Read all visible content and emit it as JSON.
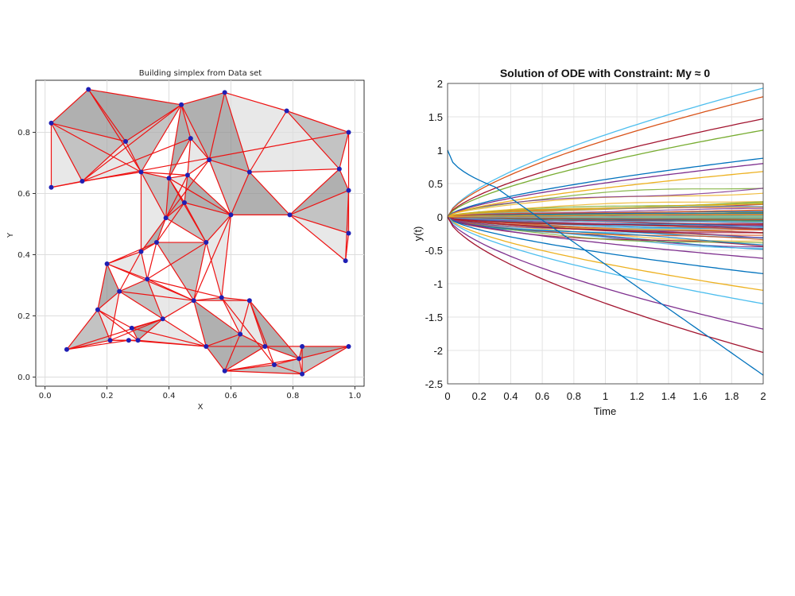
{
  "chart_data": [
    {
      "type": "scatter",
      "title": "Building simplex from Data set",
      "xlabel": "X",
      "ylabel": "Y",
      "xlim": [
        -0.03,
        1.03
      ],
      "ylim": [
        -0.03,
        0.97
      ],
      "xticks": [
        "0.0",
        "0.2",
        "0.4",
        "0.6",
        "0.8",
        "1.0"
      ],
      "yticks": [
        "0.0",
        "0.2",
        "0.4",
        "0.6",
        "0.8"
      ],
      "grid": true,
      "point_color": "#1f1fb4",
      "edge_color": "#ee1111",
      "face_colors": [
        "#8f8f8f",
        "#a9a9a9",
        "#dedede"
      ],
      "points": [
        [
          0.02,
          0.83
        ],
        [
          0.14,
          0.94
        ],
        [
          0.02,
          0.62
        ],
        [
          0.12,
          0.64
        ],
        [
          0.26,
          0.77
        ],
        [
          0.31,
          0.67
        ],
        [
          0.44,
          0.89
        ],
        [
          0.58,
          0.93
        ],
        [
          0.78,
          0.87
        ],
        [
          0.98,
          0.8
        ],
        [
          0.95,
          0.68
        ],
        [
          0.98,
          0.61
        ],
        [
          0.98,
          0.47
        ],
        [
          0.97,
          0.38
        ],
        [
          0.79,
          0.53
        ],
        [
          0.66,
          0.67
        ],
        [
          0.53,
          0.71
        ],
        [
          0.47,
          0.78
        ],
        [
          0.45,
          0.57
        ],
        [
          0.6,
          0.53
        ],
        [
          0.46,
          0.66
        ],
        [
          0.4,
          0.65
        ],
        [
          0.39,
          0.52
        ],
        [
          0.36,
          0.44
        ],
        [
          0.52,
          0.44
        ],
        [
          0.31,
          0.41
        ],
        [
          0.2,
          0.37
        ],
        [
          0.33,
          0.32
        ],
        [
          0.24,
          0.28
        ],
        [
          0.48,
          0.25
        ],
        [
          0.57,
          0.26
        ],
        [
          0.66,
          0.25
        ],
        [
          0.17,
          0.22
        ],
        [
          0.38,
          0.19
        ],
        [
          0.28,
          0.16
        ],
        [
          0.3,
          0.12
        ],
        [
          0.21,
          0.12
        ],
        [
          0.07,
          0.09
        ],
        [
          0.27,
          0.12
        ],
        [
          0.52,
          0.1
        ],
        [
          0.63,
          0.14
        ],
        [
          0.58,
          0.02
        ],
        [
          0.71,
          0.1
        ],
        [
          0.74,
          0.04
        ],
        [
          0.82,
          0.06
        ],
        [
          0.83,
          0.1
        ],
        [
          0.83,
          0.01
        ],
        [
          0.98,
          0.1
        ]
      ],
      "triangles": [
        [
          0,
          1,
          4
        ],
        [
          0,
          4,
          3
        ],
        [
          0,
          3,
          2
        ],
        [
          1,
          4,
          6
        ],
        [
          1,
          6,
          5
        ],
        [
          4,
          5,
          3
        ],
        [
          6,
          7,
          16
        ],
        [
          6,
          17,
          16
        ],
        [
          7,
          8,
          15
        ],
        [
          7,
          15,
          16
        ],
        [
          8,
          9,
          10
        ],
        [
          8,
          10,
          15
        ],
        [
          10,
          11,
          14
        ],
        [
          11,
          12,
          14
        ],
        [
          12,
          13,
          14
        ],
        [
          14,
          15,
          19
        ],
        [
          15,
          16,
          19
        ],
        [
          16,
          17,
          20
        ],
        [
          17,
          6,
          21
        ],
        [
          5,
          21,
          22
        ],
        [
          5,
          22,
          25
        ],
        [
          20,
          18,
          19
        ],
        [
          18,
          22,
          24
        ],
        [
          19,
          24,
          30
        ],
        [
          22,
          23,
          25
        ],
        [
          23,
          24,
          29
        ],
        [
          25,
          26,
          27
        ],
        [
          26,
          28,
          32
        ],
        [
          27,
          28,
          33
        ],
        [
          28,
          32,
          36
        ],
        [
          33,
          34,
          35
        ],
        [
          29,
          30,
          31
        ],
        [
          30,
          31,
          40
        ],
        [
          29,
          39,
          40
        ],
        [
          32,
          37,
          36
        ],
        [
          35,
          39,
          33
        ],
        [
          40,
          41,
          42
        ],
        [
          41,
          43,
          46
        ],
        [
          42,
          44,
          45
        ],
        [
          44,
          45,
          47
        ],
        [
          45,
          46,
          47
        ],
        [
          40,
          42,
          31
        ],
        [
          39,
          41,
          40
        ],
        [
          36,
          38,
          35
        ],
        [
          18,
          21,
          20
        ],
        [
          22,
          18,
          21
        ],
        [
          24,
          19,
          18
        ],
        [
          27,
          29,
          33
        ],
        [
          31,
          42,
          44
        ],
        [
          43,
          44,
          46
        ]
      ],
      "extra_edges": [
        [
          2,
          9
        ],
        [
          12,
          13
        ],
        [
          9,
          11
        ],
        [
          11,
          13
        ],
        [
          0,
          5
        ],
        [
          3,
          6
        ],
        [
          3,
          17
        ],
        [
          5,
          20
        ],
        [
          21,
          24
        ],
        [
          20,
          22
        ],
        [
          23,
          27
        ],
        [
          25,
          28
        ],
        [
          26,
          29
        ],
        [
          27,
          30
        ],
        [
          28,
          29
        ],
        [
          32,
          34
        ],
        [
          33,
          37
        ],
        [
          34,
          39
        ],
        [
          29,
          40
        ],
        [
          36,
          33
        ],
        [
          38,
          39
        ],
        [
          39,
          42
        ],
        [
          30,
          43
        ],
        [
          31,
          43
        ],
        [
          24,
          27
        ],
        [
          16,
          22
        ],
        [
          21,
          19
        ],
        [
          19,
          29
        ],
        [
          23,
          18
        ],
        [
          26,
          23
        ],
        [
          35,
          32
        ],
        [
          37,
          38
        ],
        [
          41,
          44
        ],
        [
          42,
          47
        ]
      ]
    },
    {
      "type": "line",
      "title": "Solution of ODE with Constraint: My ≈ 0",
      "xlabel": "Time",
      "ylabel": "y(t)",
      "xlim": [
        0,
        2
      ],
      "ylim": [
        -2.5,
        2
      ],
      "xticks": [
        "0",
        "0.2",
        "0.4",
        "0.6",
        "0.8",
        "1",
        "1.2",
        "1.4",
        "1.6",
        "1.8",
        "2"
      ],
      "yticks": [
        "2",
        "1.5",
        "1",
        "0.5",
        "0",
        "-0.5",
        "-1",
        "-1.5",
        "-2",
        "-2.5"
      ],
      "grid": true,
      "n_background_curves": 80,
      "palette": [
        "#0072bd",
        "#d95319",
        "#edb120",
        "#7e2f8e",
        "#77ac30",
        "#4dbeee",
        "#a2142f"
      ],
      "series_endpoints": [
        {
          "y0": 0,
          "y_end": 1.93,
          "color": "#4dbeee"
        },
        {
          "y0": 0,
          "y_end": 1.8,
          "color": "#d95319"
        },
        {
          "y0": 0,
          "y_end": 1.47,
          "color": "#a2142f"
        },
        {
          "y0": 0,
          "y_end": 1.3,
          "color": "#77ac30"
        },
        {
          "y0": 0,
          "y_end": 0.88,
          "color": "#0072bd"
        },
        {
          "y0": 0,
          "y_end": 0.8,
          "color": "#7e2f8e"
        },
        {
          "y0": 0,
          "y_end": 0.68,
          "color": "#edb120"
        },
        {
          "y0": 0,
          "y_end": -0.62,
          "color": "#7e2f8e"
        },
        {
          "y0": 0,
          "y_end": -0.85,
          "color": "#0072bd"
        },
        {
          "y0": 0,
          "y_end": -1.1,
          "color": "#edb120"
        },
        {
          "y0": 0,
          "y_end": -1.3,
          "color": "#4dbeee"
        },
        {
          "y0": 0,
          "y_end": -1.68,
          "color": "#7e2f8e"
        },
        {
          "y0": 0,
          "y_end": -2.03,
          "color": "#a2142f"
        },
        {
          "y0": 1.0,
          "y_end": -2.37,
          "shape": "dip",
          "color": "#0072bd"
        }
      ]
    }
  ]
}
